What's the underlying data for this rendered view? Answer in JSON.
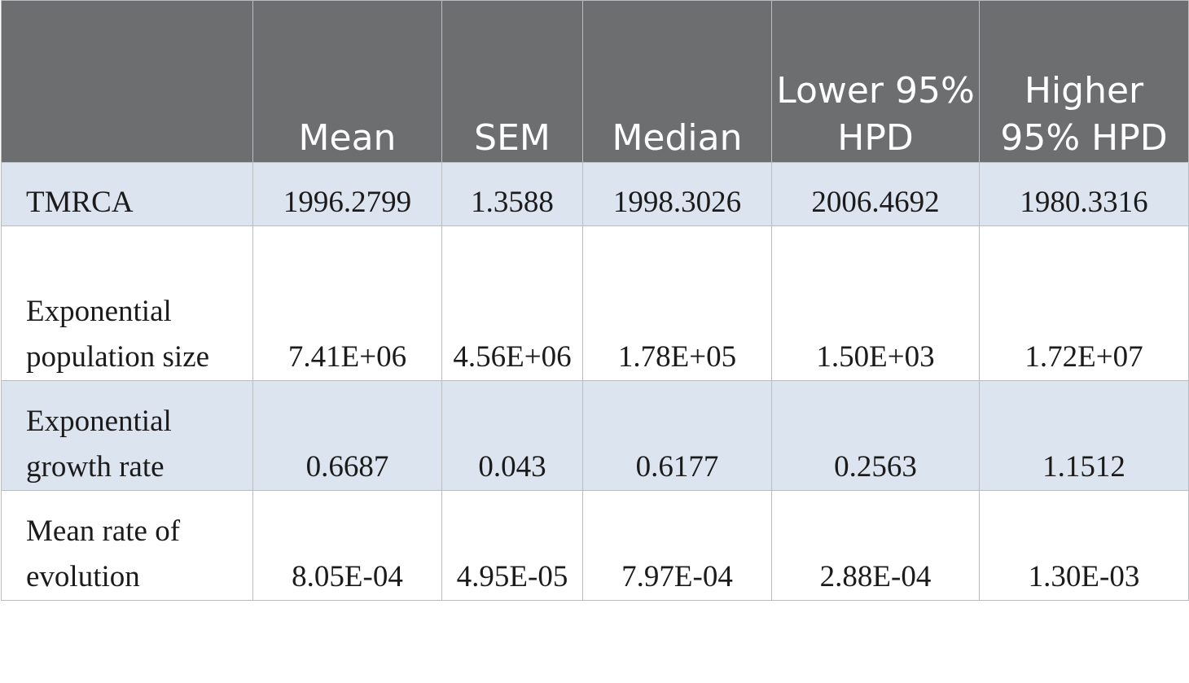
{
  "table": {
    "columns": [
      "",
      "Mean",
      "SEM",
      "Median",
      "Lower 95% HPD",
      "Higher 95% HPD"
    ],
    "rows": [
      {
        "label": "TMRCA",
        "mean": "1996.2799",
        "sem": "1.3588",
        "median": "1998.3026",
        "lower": "2006.4692",
        "higher": "1980.3316"
      },
      {
        "label": "Exponential population size",
        "mean": "7.41E+06",
        "sem": "4.56E+06",
        "median": "1.78E+05",
        "lower": "1.50E+03",
        "higher": "1.72E+07"
      },
      {
        "label": "Exponential growth rate",
        "mean": "0.6687",
        "sem": "0.043",
        "median": "0.6177",
        "lower": "0.2563",
        "higher": "1.1512"
      },
      {
        "label": "Mean rate of evolution",
        "mean": "8.05E-04",
        "sem": "4.95E-05",
        "median": "7.97E-04",
        "lower": "2.88E-04",
        "higher": "1.30E-03"
      }
    ]
  },
  "colors": {
    "header_bg": "#6d6e70",
    "header_text": "#ffffff",
    "shaded_row_bg": "#dbe4ef",
    "plain_row_bg": "#ffffff",
    "border": "#b9bcc0"
  }
}
